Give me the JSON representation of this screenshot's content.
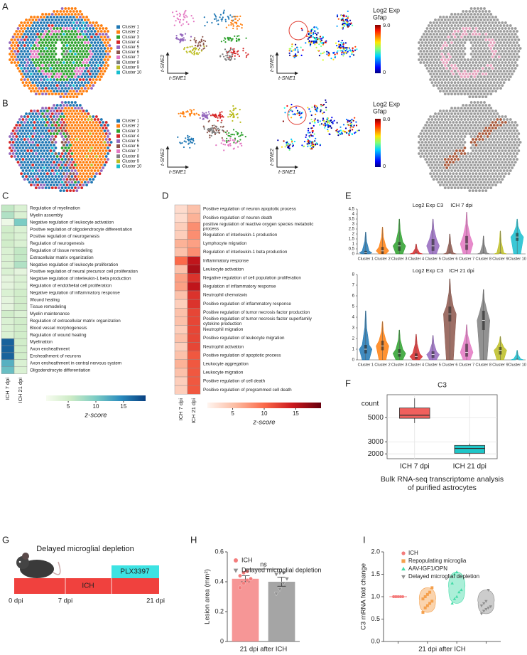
{
  "panel_labels": [
    "A",
    "B",
    "C",
    "D",
    "E",
    "F",
    "G",
    "H",
    "I"
  ],
  "spatial": [
    {
      "legend": [
        "Cluster 1",
        "Cluster 2",
        "Cluster 3",
        "Cluster 4",
        "Cluster 5",
        "Cluster 6",
        "Cluster 7",
        "Cluster 8",
        "Cluster 9",
        "Cluster 10"
      ],
      "colors": [
        "#1f77b4",
        "#ff7f0e",
        "#2ca02c",
        "#d62728",
        "#9467bd",
        "#8c564b",
        "#e377c2",
        "#7f7f7f",
        "#bcbd22",
        "#17becf"
      ],
      "tsne_x": "t-SNE1",
      "tsne_y": "t-SNE2",
      "colorbar_title": "Log2 Exp",
      "gene": "Gfap",
      "colorbar_max": "9.0",
      "colorbar_min": "0"
    },
    {
      "legend": [
        "Cluster 1",
        "Cluster 2",
        "Cluster 3",
        "Cluster 4",
        "Cluster 5",
        "Cluster 6",
        "Cluster 7",
        "Cluster 8",
        "Cluster 9",
        "Cluster 10"
      ],
      "colors": [
        "#1f77b4",
        "#ff7f0e",
        "#2ca02c",
        "#d62728",
        "#9467bd",
        "#8c564b",
        "#e377c2",
        "#7f7f7f",
        "#bcbd22",
        "#17becf"
      ],
      "tsne_x": "t-SNE1",
      "tsne_y": "t-SNE2",
      "colorbar_title": "Log2 Exp",
      "gene": "Gfap",
      "colorbar_max": "8.0",
      "colorbar_min": "0"
    }
  ],
  "timeline": {
    "title": "Delayed microglial depletion",
    "treatment": "PLX3397",
    "injury": "ICH",
    "ticks": [
      "0 dpi",
      "7 dpi",
      "21 dpi"
    ]
  },
  "chart_data": [
    {
      "type": "heatmap",
      "rows": [
        "Regulation of myelination",
        "Myelin assembly",
        "Negative regulation of leukocyte activation",
        "Positive regulation of oligodendrocyte differentiation",
        "Positive regulation of neurogenesis",
        "Regulation of neurogenesis",
        "Regulation of tissue remodeling",
        "Extracellular matrix organization",
        "Negative regulation of leukocyte proliferation",
        "Positive regulation of neural precursor cell proliferation",
        "Negative regulation of interleukin-1 beta production",
        "Regulation of endothelial cell proliferation",
        "Negative regulation of inflammatory response",
        "Wound healing",
        "Tissue remodeling",
        "Myelin maintenance",
        "Regulation of extracellular matrix organization",
        "Blood vessel morphogenesis",
        "Regulation of wound healing",
        "Myelination",
        "Axon ensheathment",
        "Ensheathment of neurons",
        "Axon ensheathment in central nervous system",
        "Oligodendrocyte differentiation"
      ],
      "columns": [
        "ICH 7 dpi",
        "ICH 21 dpi"
      ],
      "values": [
        [
          6,
          4
        ],
        [
          7,
          4
        ],
        [
          2,
          10
        ],
        [
          5,
          4
        ],
        [
          5,
          4
        ],
        [
          5,
          4
        ],
        [
          4,
          6
        ],
        [
          4,
          6
        ],
        [
          4,
          7
        ],
        [
          4,
          3
        ],
        [
          3,
          4
        ],
        [
          3,
          4
        ],
        [
          4,
          5
        ],
        [
          3,
          5
        ],
        [
          3,
          5
        ],
        [
          5,
          4
        ],
        [
          4,
          5
        ],
        [
          4,
          5
        ],
        [
          4,
          5
        ],
        [
          17,
          5
        ],
        [
          17,
          5
        ],
        [
          17,
          5
        ],
        [
          12,
          4
        ],
        [
          11,
          4
        ]
      ],
      "colorscale": [
        "#f7fcf0",
        "#ccebc5",
        "#7bccc4",
        "#2b8cbe",
        "#084081"
      ],
      "clim": [
        1,
        19
      ],
      "cticks": [
        5,
        10,
        15
      ],
      "colorbar_label": "z-score"
    },
    {
      "type": "heatmap",
      "rows": [
        "Positive regulation of neuron apoptotic process",
        "Positive regulation of neuron death",
        "positive regulation of reactive oxygen species metabolic process",
        "Regulation of interleukin-1 production",
        "Lymphocyte migration",
        "Regulation of interleukin-1 beta production",
        "Inflammatory response",
        "Leukocyte activation",
        "Negative regulation of cell population proliferation",
        "Regulation of inflammatory response",
        "Neutrophil chemotaxis",
        "Positive regulation of inflammatory response",
        "Positive regulation of tumor necrosis factor production",
        "Positive regulation of tumor necrosis factor superfamily cytokine production",
        "Neutrophil migration",
        "Positive regulation of leukocyte migration",
        "Neutrophil activation",
        "Positive regulation of apoptotic process",
        "Leukocyte aggregation",
        "Leukocyte migration",
        "Positive regulation of cell death",
        "Positive regulation of programmed cell death"
      ],
      "columns": [
        "ICH 7 dpi",
        "ICH 21 dpi"
      ],
      "values": [
        [
          3,
          5
        ],
        [
          3,
          6
        ],
        [
          4,
          8
        ],
        [
          4,
          8
        ],
        [
          6,
          7
        ],
        [
          5,
          8
        ],
        [
          10,
          15
        ],
        [
          5,
          16
        ],
        [
          7,
          13
        ],
        [
          7,
          15
        ],
        [
          5,
          13
        ],
        [
          4,
          13
        ],
        [
          5,
          12
        ],
        [
          5,
          12
        ],
        [
          4,
          12
        ],
        [
          5,
          12
        ],
        [
          4,
          12
        ],
        [
          5,
          11
        ],
        [
          6,
          11
        ],
        [
          5,
          11
        ],
        [
          4,
          11
        ],
        [
          4,
          11
        ]
      ],
      "colorscale": [
        "#fff5f0",
        "#fcbba1",
        "#fb6a4a",
        "#cb181d",
        "#67000d"
      ],
      "clim": [
        1,
        19
      ],
      "cticks": [
        5,
        10,
        15
      ],
      "colorbar_label": "z-score"
    },
    {
      "type": "violin",
      "title": "Log2 Exp C3",
      "subtitle": "ICH 7 dpi",
      "categories": [
        "Cluster 1",
        "Cluster 2",
        "Cluster 3",
        "Cluster 4",
        "Cluster 5",
        "Cluster 6",
        "Cluster 7",
        "Cluster 8",
        "Cluster 9",
        "Cluster 10"
      ],
      "colors": [
        "#1f77b4",
        "#ff7f0e",
        "#2ca02c",
        "#d62728",
        "#9467bd",
        "#8c564b",
        "#e377c2",
        "#7f7f7f",
        "#bcbd22",
        "#17becf"
      ],
      "q1": [
        0,
        0,
        0.3,
        0,
        0.3,
        0,
        0.4,
        0,
        0,
        1.3
      ],
      "median": [
        0.1,
        0.3,
        0.8,
        0,
        0.8,
        0,
        1.0,
        0,
        0,
        1.7
      ],
      "q3": [
        0.3,
        0.7,
        1.2,
        0.1,
        1.5,
        0.1,
        1.8,
        0.1,
        0.1,
        2.1
      ],
      "max": [
        2.2,
        2.7,
        3.5,
        1.0,
        3.5,
        2.0,
        4.2,
        1.8,
        2.3,
        3.5
      ],
      "ylim": [
        0,
        4.5
      ],
      "yticks": [
        0,
        0.5,
        1,
        1.5,
        2,
        2.5,
        3,
        3.5,
        4,
        4.5
      ]
    },
    {
      "type": "violin",
      "title": "Log2 Exp C3",
      "subtitle": "ICH 21 dpi",
      "categories": [
        "Cluster 1",
        "Cluster 2",
        "Cluster 3",
        "Cluster 4",
        "Cluster 5",
        "Cluster 6",
        "Cluster 7",
        "Cluster 8",
        "Cluster 9",
        "Cluster 10"
      ],
      "colors": [
        "#1f77b4",
        "#ff7f0e",
        "#2ca02c",
        "#d62728",
        "#9467bd",
        "#8c564b",
        "#e377c2",
        "#7f7f7f",
        "#bcbd22",
        "#17becf"
      ],
      "q1": [
        0.6,
        0.9,
        0.3,
        0.1,
        0.2,
        3.6,
        0.3,
        2.8,
        0.5,
        0
      ],
      "median": [
        1.0,
        1.3,
        0.6,
        0.3,
        0.5,
        4.3,
        0.7,
        3.7,
        0.9,
        0
      ],
      "q3": [
        1.4,
        1.8,
        1.0,
        0.6,
        0.8,
        5.0,
        1.5,
        4.6,
        1.2,
        0.1
      ],
      "max": [
        4.6,
        3.6,
        2.8,
        2.4,
        2.3,
        7.6,
        3.3,
        6.6,
        2.2,
        0.9
      ],
      "ylim": [
        0,
        8
      ],
      "yticks": [
        0,
        1,
        2,
        3,
        4,
        5,
        6,
        7,
        8
      ]
    },
    {
      "type": "box",
      "title": "C3",
      "ylabel": "count",
      "categories": [
        "ICH 7 dpi",
        "ICH 21 dpi"
      ],
      "colors": [
        "#f0605d",
        "#1fc6c8"
      ],
      "min": [
        4550,
        1800
      ],
      "q1": [
        4950,
        2050
      ],
      "median": [
        5200,
        2450
      ],
      "q3": [
        5800,
        2700
      ],
      "max": [
        6600,
        2850
      ],
      "ylim": [
        1600,
        6900
      ],
      "yticks": [
        2000,
        3000,
        5000
      ],
      "grid": true,
      "xlabel": [
        "Bulk RNA-seq transcriptome analysis",
        "of purified astrocytes"
      ]
    },
    {
      "type": "bar",
      "categories": [
        "ICH",
        "Delayed microglial depletion"
      ],
      "colors": [
        "#f47c7c",
        "#8f8f8f"
      ],
      "markers": [
        "circle",
        "triangle-down"
      ],
      "values": [
        0.42,
        0.4
      ],
      "errors": [
        0.02,
        0.03
      ],
      "points": [
        [
          0.36,
          0.39,
          0.41,
          0.42,
          0.44,
          0.46,
          0.47
        ],
        [
          0.32,
          0.35,
          0.39,
          0.42,
          0.45,
          0.46,
          0.46
        ]
      ],
      "ylim": [
        0,
        0.6
      ],
      "yticks": [
        0,
        0.2,
        0.4,
        0.6
      ],
      "ylabel": "Lesion area (mm²)",
      "xlabel": "21 dpi after ICH",
      "annotation": "ns"
    },
    {
      "type": "violin_points",
      "categories": [
        "ICH",
        "Repopulating microglia",
        "AAV-IGF1/OPN",
        "Delayed microglial depletion"
      ],
      "colors": [
        "#f47c7c",
        "#f5a04c",
        "#45dba8",
        "#8f8f8f"
      ],
      "markers": [
        "circle",
        "square",
        "triangle-up",
        "triangle-down"
      ],
      "points": [
        [
          1,
          1,
          1,
          1,
          1,
          1,
          1
        ],
        [
          0.65,
          0.75,
          0.8,
          0.85,
          0.9,
          0.95,
          1.0,
          1.05,
          1.1,
          1.2
        ],
        [
          0.85,
          0.95,
          1.0,
          1.1,
          1.15,
          1.3,
          1.5,
          1.55
        ],
        [
          0.62,
          0.68,
          0.72,
          0.75,
          0.78,
          0.8,
          0.85,
          0.9,
          1.15
        ]
      ],
      "ylim": [
        0,
        2
      ],
      "yticks": [
        {
          "value": 0,
          "label": "0.0"
        },
        {
          "value": 0.5,
          "label": "0.5"
        },
        {
          "value": 1,
          "label": "1.0"
        },
        {
          "value": 1.5,
          "label": "1.5"
        },
        {
          "value": 2,
          "label": "2.0"
        }
      ],
      "ylabel": "C3 mRNA fold change",
      "xlabel": "21 dpi after ICH"
    }
  ]
}
